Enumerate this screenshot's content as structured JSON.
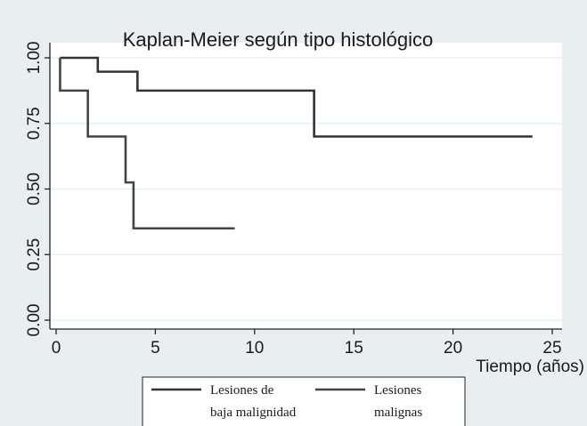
{
  "chart_data": {
    "type": "line",
    "title": "Kaplan-Meier  según tipo histológico",
    "xlabel": "Tiempo (años)",
    "ylabel": "",
    "xlim": [
      0,
      25
    ],
    "ylim": [
      0,
      1
    ],
    "xticks": [
      0,
      5,
      10,
      15,
      20,
      25
    ],
    "yticks": [
      0,
      0.25,
      0.5,
      0.75,
      1
    ],
    "ytick_labels": [
      "0.00",
      "0.25",
      "0.50",
      "0.75",
      "1.00"
    ],
    "grid": true,
    "step": true,
    "legend_position": "bottom",
    "series": [
      {
        "name": "Lesiones de baja malignidad",
        "legend_lines": [
          "Lesiones de",
          "baja malignidad"
        ],
        "color": "#333333",
        "x": [
          0.2,
          2.1,
          4.1,
          13.0,
          24.0
        ],
        "y": [
          1.0,
          0.947,
          0.875,
          0.7,
          0.7
        ]
      },
      {
        "name": "Lesiones malignas",
        "legend_lines": [
          "Lesiones",
          "malignas"
        ],
        "color": "#444444",
        "x": [
          0.2,
          1.6,
          3.5,
          3.9,
          9.0
        ],
        "y": [
          0.875,
          0.7,
          0.525,
          0.35,
          0.35
        ]
      }
    ]
  }
}
